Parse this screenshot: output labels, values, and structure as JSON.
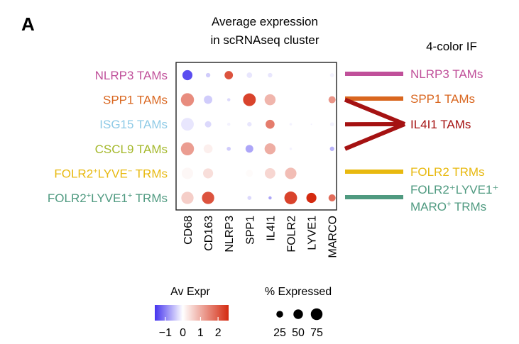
{
  "panel_label": "A",
  "title_line1": "Average expression",
  "title_line2": "in scRNAseq cluster",
  "right_header": "4-color IF",
  "legend": {
    "color_title": "Av Expr",
    "color_ticks": [
      "−1",
      "0",
      "1",
      "2"
    ],
    "color_tick_values": [
      -1,
      0,
      1,
      2
    ],
    "color_range": [
      -1.6,
      2.6
    ],
    "size_title": "% Expressed",
    "size_ticks": [
      "25",
      "50",
      "75"
    ],
    "size_tick_values": [
      25,
      50,
      75
    ]
  },
  "colors": {
    "low": "#4433ee",
    "mid": "#ffffff",
    "high": "#d42a10"
  },
  "chart_data": {
    "type": "dotplot",
    "genes": [
      "CD68",
      "CD163",
      "NLRP3",
      "SPP1",
      "IL4I1",
      "FOLR2",
      "LYVE1",
      "MARCO"
    ],
    "clusters": [
      {
        "label": "NLRP3 TAMs",
        "pre": "NLRP3 TAMs",
        "sup1": "",
        "mid": "",
        "sup2": "",
        "post": "",
        "color": "#c0509a"
      },
      {
        "label": "SPP1 TAMs",
        "pre": "SPP1 TAMs",
        "sup1": "",
        "mid": "",
        "sup2": "",
        "post": "",
        "color": "#d9661f"
      },
      {
        "label": "ISG15 TAMs",
        "pre": "ISG15 TAMs",
        "sup1": "",
        "mid": "",
        "sup2": "",
        "post": "",
        "color": "#8ecae6"
      },
      {
        "label": "CSCL9 TAMs",
        "pre": "CSCL9 TAMs",
        "sup1": "",
        "mid": "",
        "sup2": "",
        "post": "",
        "color": "#a4b82a"
      },
      {
        "label": "FOLR2+LYVE− TRMs",
        "pre": "FOLR2",
        "sup1": "+",
        "mid": "LYVE",
        "sup2": "−",
        "post": " TRMs",
        "color": "#e8b90f"
      },
      {
        "label": "FOLR2+LYVE1+ TRMs",
        "pre": "FOLR2",
        "sup1": "+",
        "mid": "LYVE1",
        "sup2": "+",
        "post": " TRMs",
        "color": "#4f9a80"
      }
    ],
    "expression": [
      [
        -1.4,
        -0.4,
        2.1,
        -0.2,
        -0.2,
        0.0,
        0.0,
        -0.1
      ],
      [
        1.4,
        -0.4,
        -0.3,
        2.3,
        0.9,
        0.0,
        0.0,
        1.3
      ],
      [
        -0.2,
        -0.3,
        -0.1,
        -0.2,
        1.6,
        -0.1,
        -0.1,
        -0.1
      ],
      [
        1.2,
        0.2,
        -0.4,
        -0.7,
        1.0,
        -0.1,
        0.0,
        -0.6
      ],
      [
        0.1,
        0.4,
        0.0,
        0.05,
        0.5,
        0.8,
        0.0,
        0.0
      ],
      [
        0.6,
        2.1,
        0.0,
        -0.3,
        -0.7,
        2.3,
        2.6,
        1.8
      ]
    ],
    "pct_expressed": [
      [
        50,
        10,
        35,
        15,
        10,
        3,
        1,
        8
      ],
      [
        85,
        35,
        5,
        80,
        60,
        3,
        1,
        25
      ],
      [
        80,
        20,
        5,
        10,
        40,
        3,
        1,
        8
      ],
      [
        85,
        40,
        8,
        30,
        60,
        3,
        1,
        10
      ],
      [
        65,
        50,
        5,
        25,
        55,
        65,
        1,
        15
      ],
      [
        75,
        75,
        10,
        8,
        5,
        80,
        50,
        25
      ]
    ],
    "if_targets": [
      {
        "label": "NLRP3 TAMs",
        "line1": "NLRP3 TAMs",
        "line2": "",
        "sup": "",
        "color": "#c0509a",
        "from_clusters": [
          0
        ]
      },
      {
        "label": "SPP1 TAMs",
        "line1": "SPP1 TAMs",
        "line2": "",
        "sup": "",
        "color": "#d9661f",
        "from_clusters": [
          1
        ]
      },
      {
        "label": "IL4I1 TAMs",
        "line1": "IL4I1 TAMs",
        "line2": "",
        "sup": "",
        "color": "#a51212",
        "from_clusters": [
          1,
          2,
          3
        ]
      },
      {
        "label": "FOLR2 TRMs",
        "line1": "FOLR2 TRMs",
        "line2": "",
        "sup": "",
        "color": "#e8b90f",
        "from_clusters": [
          4
        ]
      },
      {
        "label": "FOLR2+LYVE1+ MARO+ TRMs",
        "line1": "FOLR2⁺LYVE1⁺",
        "line2": "MARO",
        "sup": "+",
        "color": "#4f9a80",
        "from_clusters": [
          5
        ]
      }
    ]
  }
}
